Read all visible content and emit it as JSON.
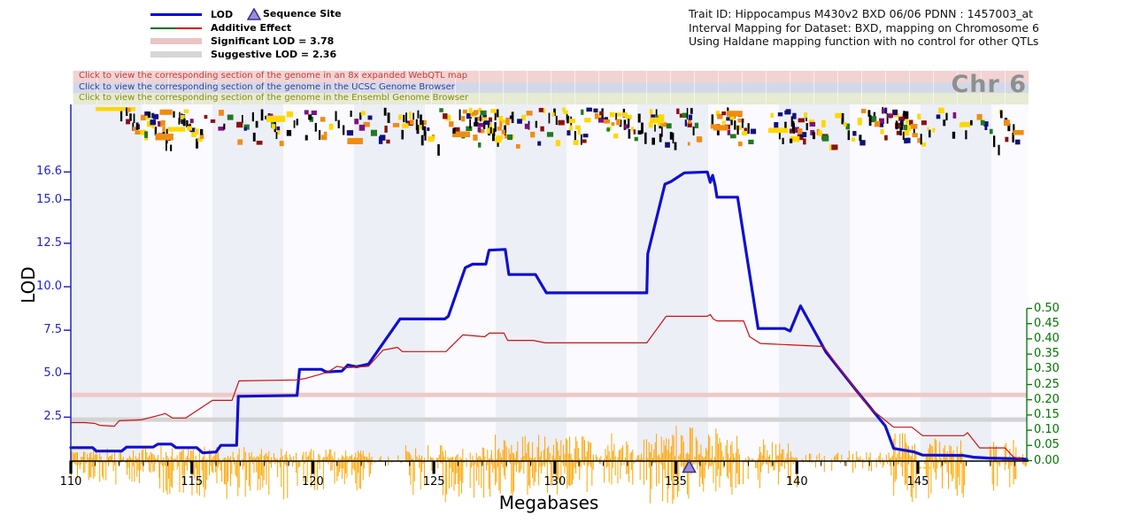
{
  "header": {
    "legend": [
      {
        "label": "LOD",
        "type": "line",
        "color": "#0000dd"
      },
      {
        "label": "Additive Effect",
        "type": "line-dual",
        "color_left": "#007000",
        "color_right": "#dd0000"
      },
      {
        "label": "Significant LOD = 3.78",
        "type": "band",
        "color": "#eac5c5"
      },
      {
        "label": "Suggestive LOD = 2.36",
        "type": "band",
        "color": "#d6d6d6"
      }
    ],
    "sequence_site": {
      "label": "Sequence Site",
      "marker_fill": "#9c8be0",
      "marker_stroke": "#333388"
    },
    "info_lines": [
      "Trait ID: Hippocampus M430v2 BXD 06/06 PDNN : 1457003_at",
      "Interval Mapping for Dataset: BXD, mapping on Chromosome 6",
      "Using Haldane mapping function with no control for other QTLs"
    ]
  },
  "banners": [
    {
      "label": "Click to view the corresponding section of the genome in an 8x expanded WebQTL map",
      "bg": "#f2d3d3",
      "fg": "#c43c3c"
    },
    {
      "label": "Click to view the corresponding section of the genome in the UCSC Genome Browser",
      "bg": "#d3d8e9",
      "fg": "#3c3c96"
    },
    {
      "label": "Click to view the corresponding section of the genome in the Ensembl Genome Browser",
      "bg": "#e6ebd2",
      "fg": "#8a8a10"
    }
  ],
  "chromosome_label": "Chr 6",
  "axes": {
    "left": {
      "title": "LOD",
      "color": "#2222cc",
      "ticks": [
        2.5,
        5.0,
        7.5,
        10.0,
        12.5,
        15.0,
        16.6
      ],
      "tick_labels": [
        "2.5",
        "5.0",
        "7.5",
        "10.0",
        "12.5",
        "15.0",
        "16.6"
      ]
    },
    "right": {
      "color": "#007700",
      "ticks": [
        0.0,
        0.05,
        0.1,
        0.15,
        0.2,
        0.25,
        0.3,
        0.35,
        0.4,
        0.45,
        0.5
      ],
      "tick_labels": [
        "0.00",
        "0.05",
        "0.10",
        "0.15",
        "0.20",
        "0.25",
        "0.30",
        "0.35",
        "0.40",
        "0.45",
        "0.50"
      ]
    },
    "bottom": {
      "title": "Megabases",
      "range": [
        110,
        149.5
      ],
      "major_ticks": [
        110,
        115,
        120,
        125,
        130,
        135,
        140,
        145
      ],
      "minor_step": 1
    }
  },
  "chart_data": {
    "type": "line",
    "title": "Interval Mapping for Dataset: BXD, mapping on Chromosome 6",
    "xlabel": "Megabases",
    "ylabel_left": "LOD",
    "x_range_mb": [
      110,
      149.5
    ],
    "lod_ylim": [
      0,
      17.2
    ],
    "additive_ylim": [
      0,
      0.52
    ],
    "thresholds": {
      "significant_lod": 3.78,
      "suggestive_lod": 2.36,
      "significant_color": "#efc9c9",
      "suggestive_color": "#d3d3d3"
    },
    "sequence_site_mb": 135.55,
    "series": [
      {
        "name": "LOD",
        "color": "#1010d0",
        "width": 3.2,
        "axis": "left",
        "points": [
          [
            110,
            0.75
          ],
          [
            110.9,
            0.75
          ],
          [
            111.05,
            0.55
          ],
          [
            112.1,
            0.55
          ],
          [
            112.3,
            0.78
          ],
          [
            113.4,
            0.78
          ],
          [
            113.6,
            0.95
          ],
          [
            114.15,
            0.95
          ],
          [
            114.35,
            0.75
          ],
          [
            115.2,
            0.75
          ],
          [
            115.45,
            0.45
          ],
          [
            116.0,
            0.5
          ],
          [
            116.2,
            0.88
          ],
          [
            116.85,
            0.88
          ],
          [
            116.92,
            3.7
          ],
          [
            119.35,
            3.75
          ],
          [
            119.45,
            5.25
          ],
          [
            120.35,
            5.25
          ],
          [
            120.55,
            5.1
          ],
          [
            121.2,
            5.15
          ],
          [
            121.45,
            5.5
          ],
          [
            121.8,
            5.4
          ],
          [
            122.3,
            5.55
          ],
          [
            123.6,
            8.15
          ],
          [
            125.45,
            8.15
          ],
          [
            125.6,
            8.3
          ],
          [
            126.3,
            11.1
          ],
          [
            126.6,
            11.3
          ],
          [
            127.15,
            11.3
          ],
          [
            127.28,
            12.1
          ],
          [
            127.95,
            12.15
          ],
          [
            128.1,
            10.7
          ],
          [
            129.2,
            10.7
          ],
          [
            129.65,
            9.65
          ],
          [
            133.8,
            9.65
          ],
          [
            133.84,
            11.9
          ],
          [
            134.55,
            15.9
          ],
          [
            134.8,
            16.05
          ],
          [
            135.35,
            16.55
          ],
          [
            136.3,
            16.6
          ],
          [
            136.42,
            16.0
          ],
          [
            136.52,
            16.4
          ],
          [
            136.62,
            15.85
          ],
          [
            136.7,
            15.15
          ],
          [
            137.55,
            15.15
          ],
          [
            138.4,
            7.6
          ],
          [
            139.5,
            7.6
          ],
          [
            139.72,
            7.45
          ],
          [
            140.15,
            8.9
          ],
          [
            141.2,
            6.25
          ],
          [
            142.45,
            4.05
          ],
          [
            143.65,
            2.0
          ],
          [
            144.0,
            0.7
          ],
          [
            144.85,
            0.5
          ],
          [
            145.2,
            0.32
          ],
          [
            146.85,
            0.3
          ],
          [
            147.3,
            0.2
          ],
          [
            147.9,
            0.15
          ],
          [
            149.3,
            0.1
          ],
          [
            149.5,
            0.07
          ]
        ]
      },
      {
        "name": "Additive Effect",
        "color": "#cc1111",
        "width": 1.2,
        "axis": "right",
        "points": [
          [
            110,
            0.125
          ],
          [
            110.6,
            0.125
          ],
          [
            111.0,
            0.122
          ],
          [
            111.2,
            0.116
          ],
          [
            111.8,
            0.113
          ],
          [
            112.0,
            0.131
          ],
          [
            112.9,
            0.134
          ],
          [
            113.75,
            0.151
          ],
          [
            113.9,
            0.155
          ],
          [
            114.2,
            0.14
          ],
          [
            114.75,
            0.14
          ],
          [
            115.85,
            0.198
          ],
          [
            116.66,
            0.198
          ],
          [
            116.95,
            0.262
          ],
          [
            119.3,
            0.265
          ],
          [
            119.7,
            0.27
          ],
          [
            120.6,
            0.29
          ],
          [
            121.0,
            0.31
          ],
          [
            121.3,
            0.305
          ],
          [
            122.3,
            0.31
          ],
          [
            122.9,
            0.363
          ],
          [
            123.5,
            0.372
          ],
          [
            123.7,
            0.358
          ],
          [
            125.5,
            0.358
          ],
          [
            126.2,
            0.413
          ],
          [
            127.1,
            0.407
          ],
          [
            127.3,
            0.419
          ],
          [
            127.9,
            0.419
          ],
          [
            128.05,
            0.395
          ],
          [
            129.1,
            0.395
          ],
          [
            129.6,
            0.387
          ],
          [
            133.8,
            0.387
          ],
          [
            134.6,
            0.474
          ],
          [
            136.3,
            0.474
          ],
          [
            136.42,
            0.48
          ],
          [
            136.55,
            0.465
          ],
          [
            136.7,
            0.459
          ],
          [
            137.8,
            0.459
          ],
          [
            138.05,
            0.407
          ],
          [
            138.5,
            0.385
          ],
          [
            141.1,
            0.375
          ],
          [
            141.8,
            0.3
          ],
          [
            143.0,
            0.174
          ],
          [
            144.0,
            0.11
          ],
          [
            144.75,
            0.11
          ],
          [
            145.2,
            0.082
          ],
          [
            146.9,
            0.082
          ],
          [
            147.05,
            0.092
          ],
          [
            147.55,
            0.042
          ],
          [
            148.6,
            0.042
          ],
          [
            148.95,
            0.012
          ],
          [
            149.3,
            0.004
          ]
        ]
      }
    ],
    "marker_histogram": {
      "color": "#FFA500",
      "segments": [
        {
          "mb_start": 110.0,
          "mb_end": 113.66,
          "up": 12,
          "down": 28,
          "density": 0.75
        },
        {
          "mb_start": 113.66,
          "mb_end": 119.14,
          "up": 15,
          "down": 42,
          "density": 0.8
        },
        {
          "mb_start": 119.14,
          "mb_end": 122.43,
          "up": 12,
          "down": 32,
          "density": 0.7
        },
        {
          "mb_start": 122.43,
          "mb_end": 123.82,
          "up": 5,
          "down": 8,
          "density": 0.25
        },
        {
          "mb_start": 123.82,
          "mb_end": 127.37,
          "up": 16,
          "down": 45,
          "density": 0.7
        },
        {
          "mb_start": 127.37,
          "mb_end": 131.58,
          "up": 28,
          "down": 38,
          "density": 0.85
        },
        {
          "mb_start": 131.58,
          "mb_end": 132.02,
          "up": 6,
          "down": 10,
          "density": 0.3
        },
        {
          "mb_start": 132.02,
          "mb_end": 133.77,
          "up": 30,
          "down": 30,
          "density": 0.8
        },
        {
          "mb_start": 133.77,
          "mb_end": 137.61,
          "up": 38,
          "down": 48,
          "density": 0.9
        },
        {
          "mb_start": 137.61,
          "mb_end": 138.45,
          "up": 6,
          "down": 30,
          "density": 0.5
        },
        {
          "mb_start": 138.45,
          "mb_end": 139.99,
          "up": 25,
          "down": 30,
          "density": 0.8
        },
        {
          "mb_start": 139.99,
          "mb_end": 143.83,
          "up": 10,
          "down": 12,
          "density": 0.35
        },
        {
          "mb_start": 143.83,
          "mb_end": 144.93,
          "up": 30,
          "down": 45,
          "density": 0.9
        },
        {
          "mb_start": 145.22,
          "mb_end": 146.94,
          "up": 28,
          "down": 42,
          "density": 0.85
        },
        {
          "mb_start": 147.96,
          "mb_end": 149.06,
          "up": 22,
          "down": 35,
          "density": 0.8
        },
        {
          "mb_start": 149.06,
          "mb_end": 149.5,
          "up": 6,
          "down": 8,
          "density": 0.4
        }
      ]
    },
    "gene_track": {
      "palette": [
        "#ffd700",
        "#f08c10",
        "#10107e",
        "#000000",
        "#8b1010",
        "#1f7a1f",
        "#7d107d"
      ],
      "palette_weights": [
        0.2,
        0.12,
        0.13,
        0.32,
        0.09,
        0.07,
        0.07
      ],
      "runs": 115,
      "wide_blocks": 14,
      "singles": 45,
      "seed": 7,
      "leading_bar": {
        "x": 108,
        "y": 121,
        "w": 45,
        "h": 4.5,
        "color": "#ffd700"
      }
    }
  }
}
